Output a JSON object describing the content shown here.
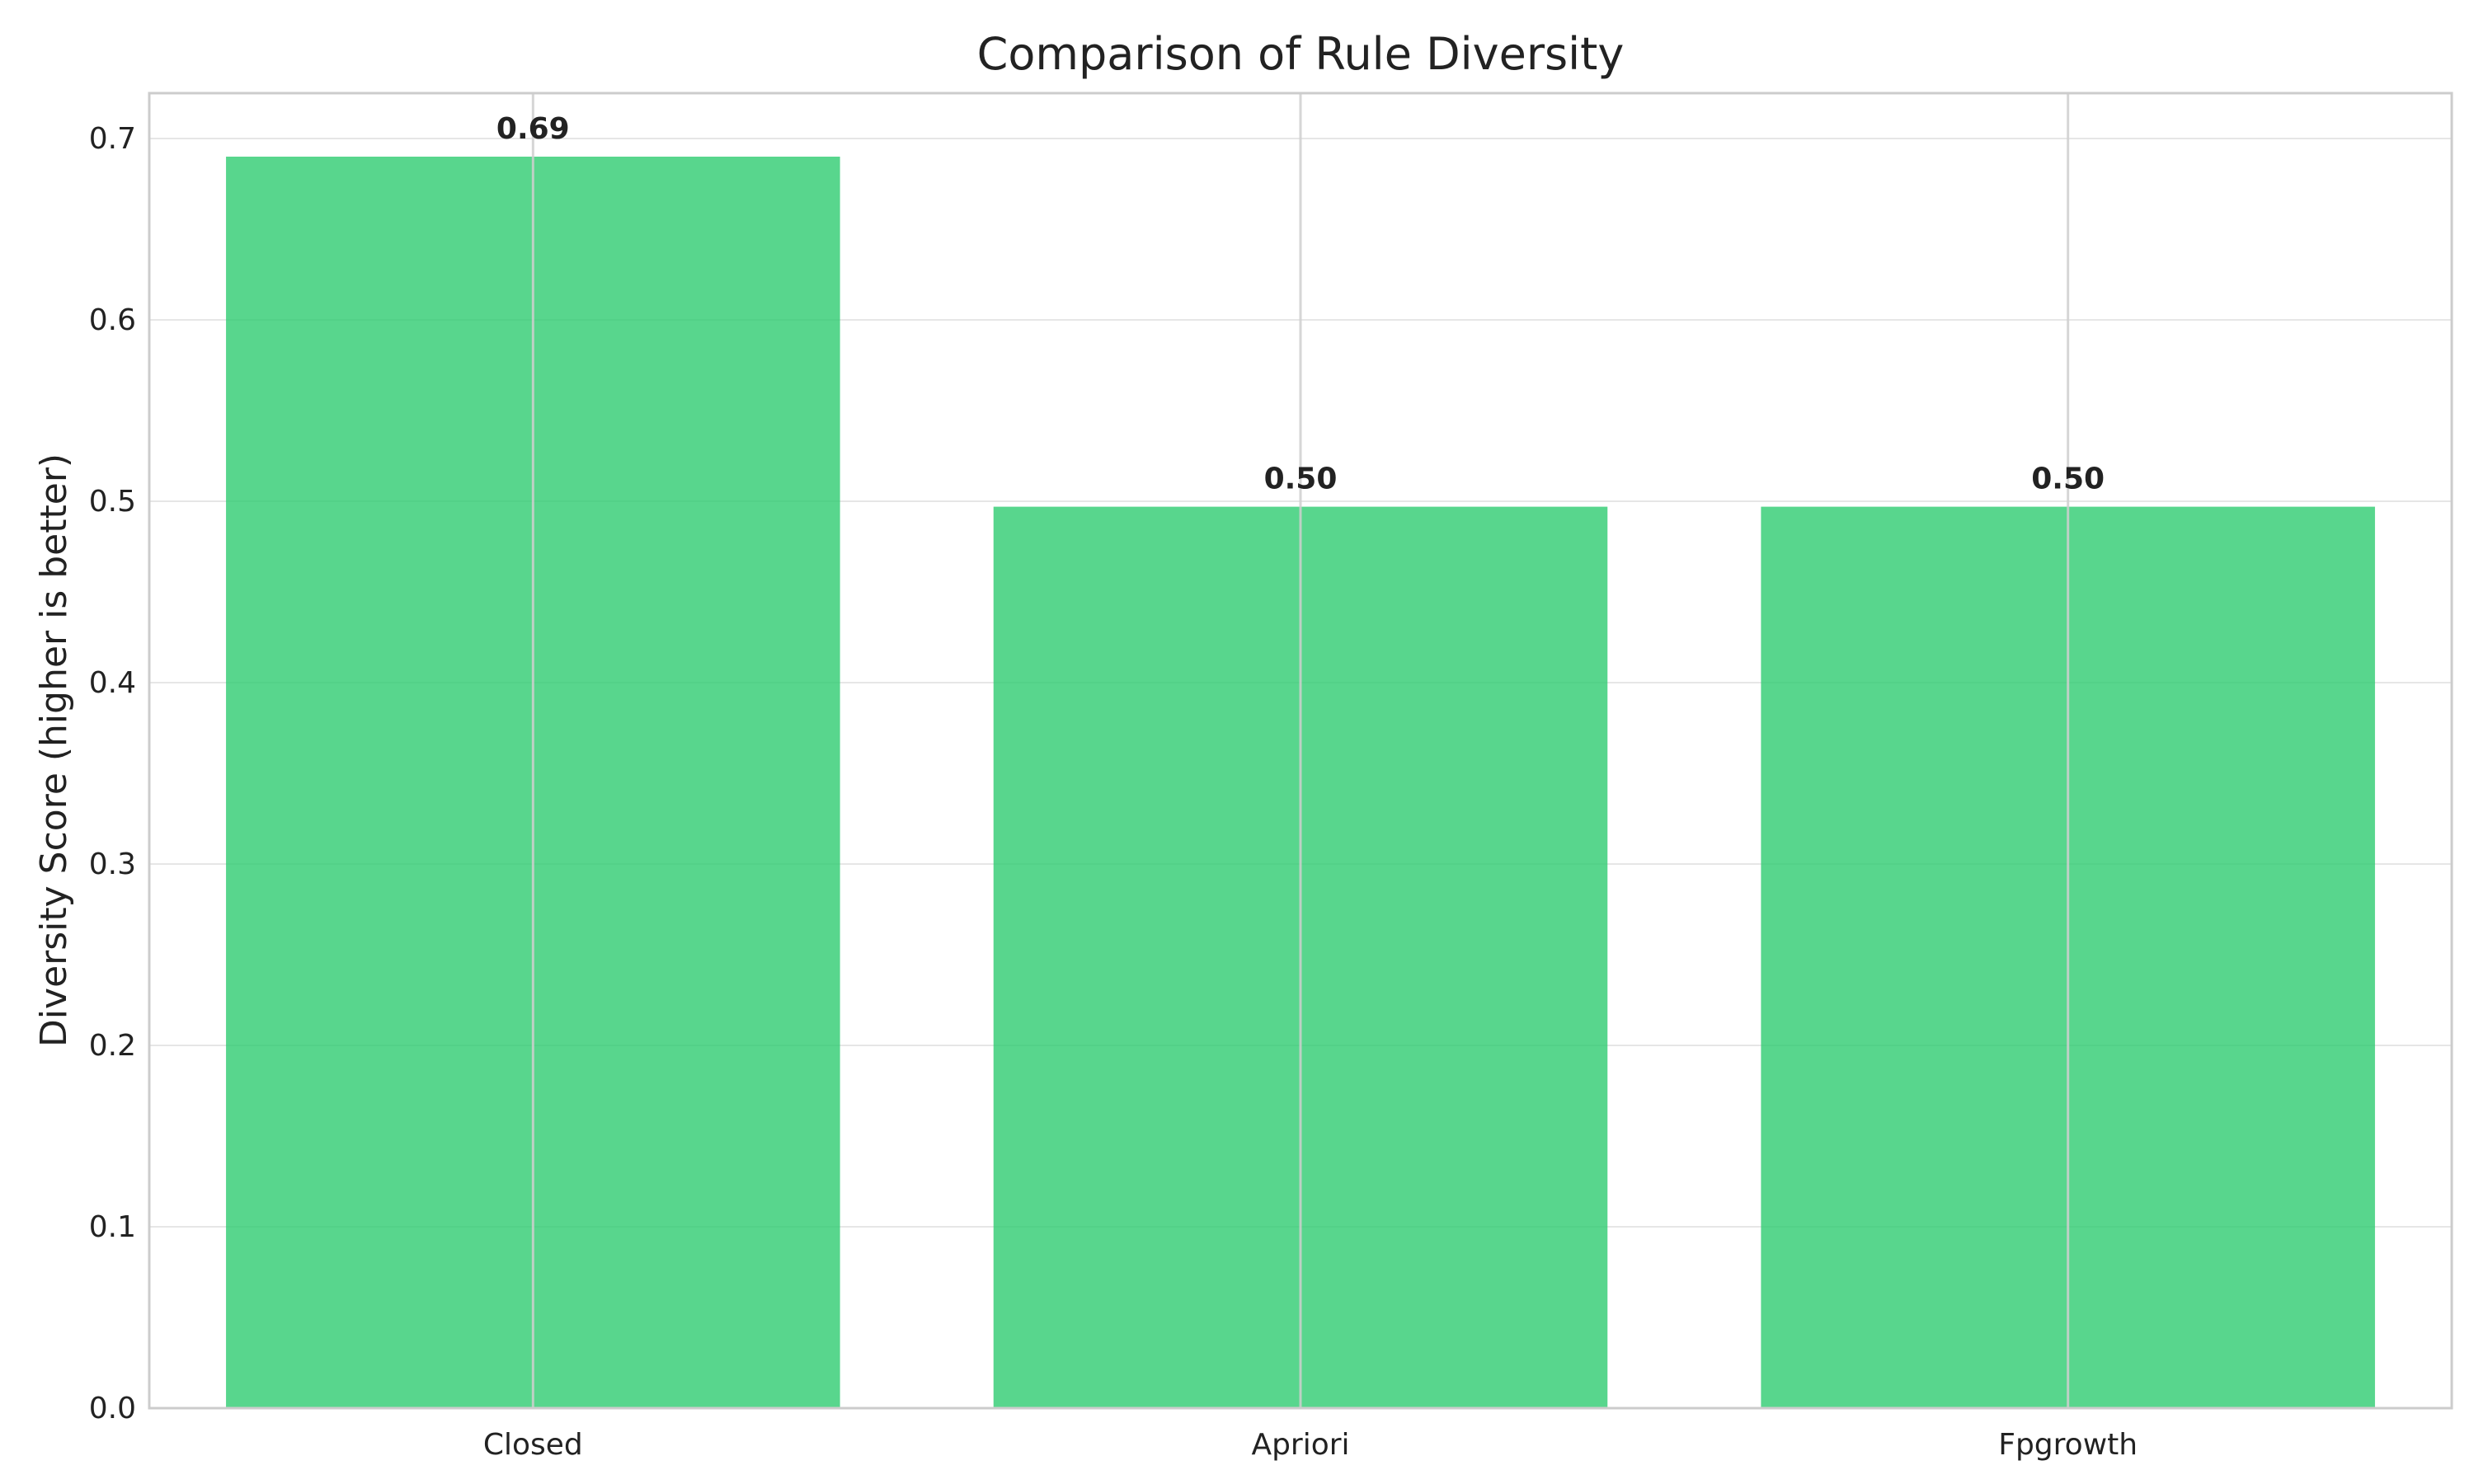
{
  "chart_data": {
    "type": "bar",
    "title": "Comparison of Rule Diversity",
    "xlabel": "",
    "ylabel": "Diversity Score (higher is better)",
    "categories": [
      "Closed",
      "Apriori",
      "Fpgrowth"
    ],
    "values": [
      0.69,
      0.497,
      0.497
    ],
    "value_labels": [
      "0.69",
      "0.50",
      "0.50"
    ],
    "ylim": [
      0,
      0.725
    ],
    "yticks": [
      0.0,
      0.1,
      0.2,
      0.3,
      0.4,
      0.5,
      0.6,
      0.7
    ],
    "ytick_labels": [
      "0.0",
      "0.1",
      "0.2",
      "0.3",
      "0.4",
      "0.5",
      "0.6",
      "0.7"
    ],
    "grid": true,
    "bar_color": "#2ecc71",
    "bar_opacity": 0.8
  }
}
